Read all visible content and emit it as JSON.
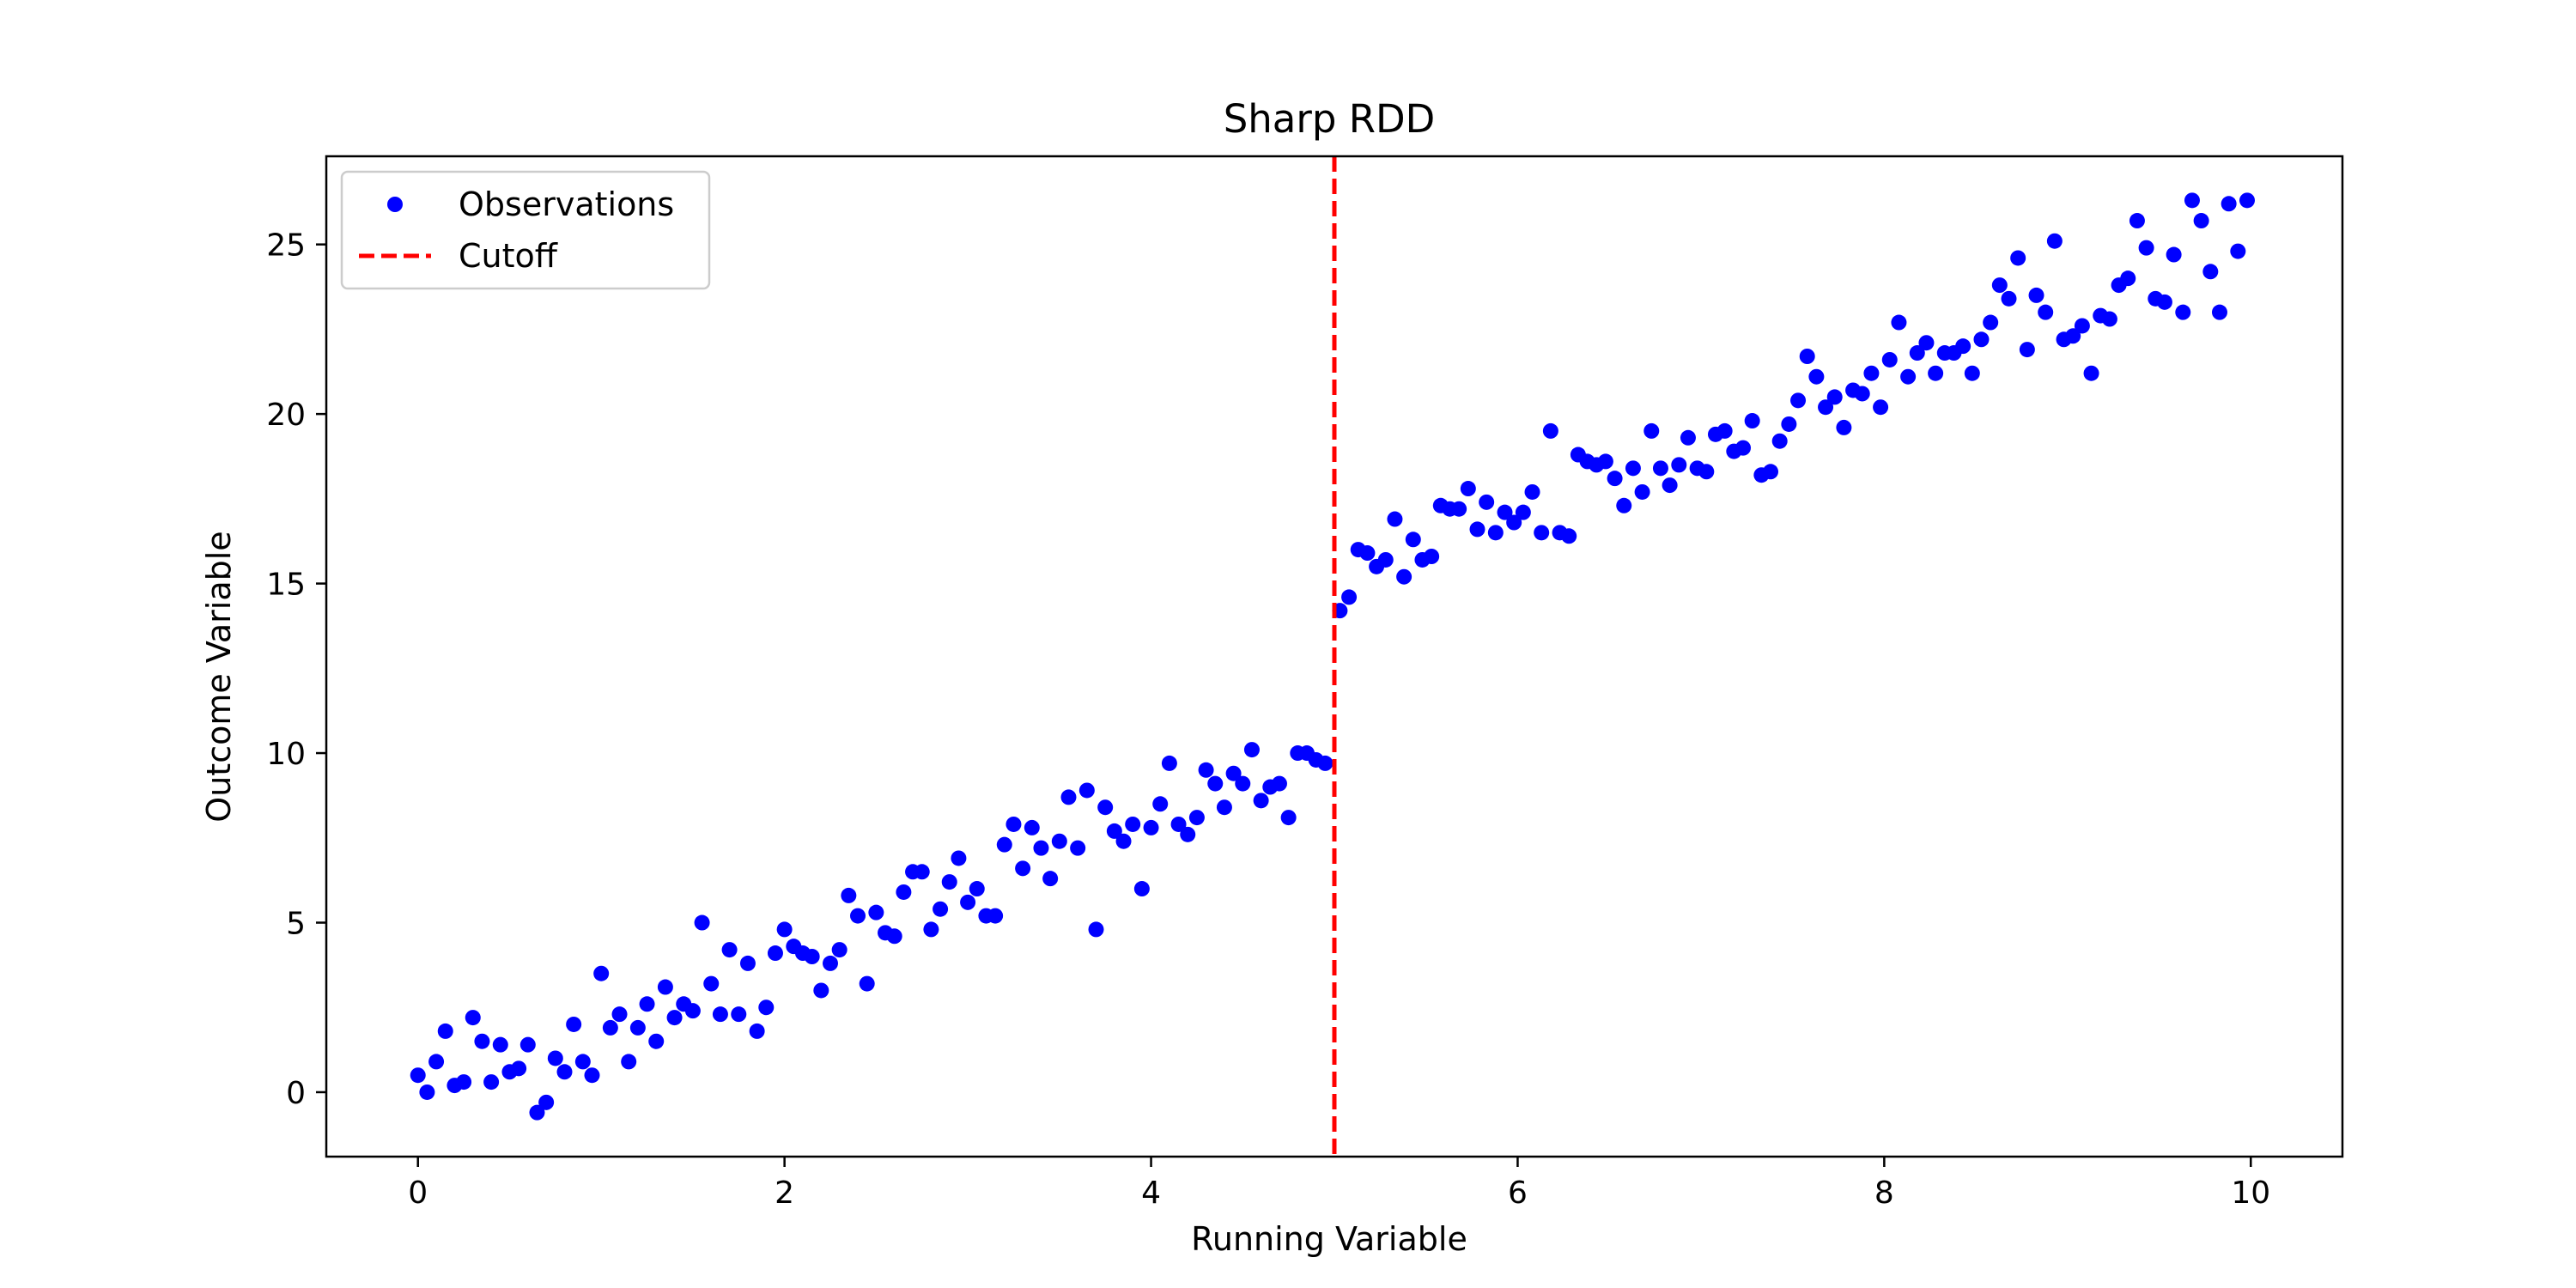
{
  "chart_data": {
    "type": "scatter",
    "title": "Sharp RDD",
    "xlabel": "Running Variable",
    "ylabel": "Outcome Variable",
    "xlim": [
      -0.5,
      10.5
    ],
    "ylim": [
      -1.9,
      27.6
    ],
    "x_ticks": [
      0,
      2,
      4,
      6,
      8,
      10
    ],
    "y_ticks": [
      0,
      5,
      10,
      15,
      20,
      25
    ],
    "x_tick_labels": [
      "0",
      "2",
      "4",
      "6",
      "8",
      "10"
    ],
    "y_tick_labels": [
      "0",
      "5",
      "10",
      "15",
      "20",
      "25"
    ],
    "grid": false,
    "legend_position": "top-left",
    "series": [
      {
        "name": "Observations",
        "kind": "scatter",
        "color": "#0000ff",
        "x": [
          0.0,
          0.05,
          0.1,
          0.15,
          0.2,
          0.25,
          0.3,
          0.35,
          0.4,
          0.45,
          0.5,
          0.55,
          0.6,
          0.65,
          0.7,
          0.75,
          0.8,
          0.85,
          0.9,
          0.95,
          1.0,
          1.05,
          1.1,
          1.15,
          1.2,
          1.25,
          1.3,
          1.35,
          1.4,
          1.45,
          1.5,
          1.55,
          1.6,
          1.65,
          1.7,
          1.75,
          1.8,
          1.85,
          1.9,
          1.95,
          2.0,
          2.05,
          2.1,
          2.15,
          2.2,
          2.25,
          2.3,
          2.35,
          2.4,
          2.45,
          2.5,
          2.55,
          2.6,
          2.65,
          2.7,
          2.75,
          2.8,
          2.85,
          2.9,
          2.95,
          3.0,
          3.05,
          3.1,
          3.15,
          3.2,
          3.25,
          3.3,
          3.35,
          3.4,
          3.45,
          3.5,
          3.55,
          3.6,
          3.65,
          3.7,
          3.75,
          3.8,
          3.85,
          3.9,
          3.95,
          4.0,
          4.05,
          4.1,
          4.15,
          4.2,
          4.25,
          4.3,
          4.35,
          4.4,
          4.45,
          4.5,
          4.55,
          4.6,
          4.65,
          4.7,
          4.75,
          4.8,
          4.85,
          4.9,
          4.95,
          5.03,
          5.08,
          5.13,
          5.18,
          5.23,
          5.28,
          5.33,
          5.38,
          5.43,
          5.48,
          5.53,
          5.58,
          5.63,
          5.68,
          5.73,
          5.78,
          5.83,
          5.88,
          5.93,
          5.98,
          6.03,
          6.08,
          6.13,
          6.18,
          6.23,
          6.28,
          6.33,
          6.38,
          6.43,
          6.48,
          6.53,
          6.58,
          6.63,
          6.68,
          6.73,
          6.78,
          6.83,
          6.88,
          6.93,
          6.98,
          7.03,
          7.08,
          7.13,
          7.18,
          7.23,
          7.28,
          7.33,
          7.38,
          7.43,
          7.48,
          7.53,
          7.58,
          7.63,
          7.68,
          7.73,
          7.78,
          7.83,
          7.88,
          7.93,
          7.98,
          8.03,
          8.08,
          8.13,
          8.18,
          8.23,
          8.28,
          8.33,
          8.38,
          8.43,
          8.48,
          8.53,
          8.58,
          8.63,
          8.68,
          8.73,
          8.78,
          8.83,
          8.88,
          8.93,
          8.98,
          9.03,
          9.08,
          9.13,
          9.18,
          9.23,
          9.28,
          9.33,
          9.38,
          9.43,
          9.48,
          9.53,
          9.58,
          9.63,
          9.68,
          9.73,
          9.78,
          9.83,
          9.88,
          9.93,
          9.98
        ],
        "y": [
          0.5,
          0.0,
          0.9,
          1.8,
          0.2,
          0.3,
          2.2,
          1.5,
          0.3,
          1.4,
          0.6,
          0.7,
          1.4,
          -0.6,
          -0.3,
          1.0,
          0.6,
          2.0,
          0.9,
          0.5,
          3.5,
          1.9,
          2.3,
          0.9,
          1.9,
          2.6,
          1.5,
          3.1,
          2.2,
          2.6,
          2.4,
          5.0,
          3.2,
          2.3,
          4.2,
          2.3,
          3.8,
          1.8,
          2.5,
          4.1,
          4.8,
          4.3,
          4.1,
          4.0,
          3.0,
          3.8,
          4.2,
          5.8,
          5.2,
          3.2,
          5.3,
          4.7,
          4.6,
          5.9,
          6.5,
          6.5,
          4.8,
          5.4,
          6.2,
          6.9,
          5.6,
          6.0,
          5.2,
          5.2,
          7.3,
          7.9,
          6.6,
          7.8,
          7.2,
          6.3,
          7.4,
          8.7,
          7.2,
          8.9,
          4.8,
          8.4,
          7.7,
          7.4,
          7.9,
          6.0,
          7.8,
          8.5,
          9.7,
          7.9,
          7.6,
          8.1,
          9.5,
          9.1,
          8.4,
          9.4,
          9.1,
          10.1,
          8.6,
          9.0,
          9.1,
          8.1,
          10.0,
          10.0,
          9.8,
          9.7,
          14.2,
          14.6,
          16.0,
          15.9,
          15.5,
          15.7,
          16.9,
          15.2,
          16.3,
          15.7,
          15.8,
          17.3,
          17.2,
          17.2,
          17.8,
          16.6,
          17.4,
          16.5,
          17.1,
          16.8,
          17.1,
          17.7,
          16.5,
          19.5,
          16.5,
          16.4,
          18.8,
          18.6,
          18.5,
          18.6,
          18.1,
          17.3,
          18.4,
          17.7,
          19.5,
          18.4,
          17.9,
          18.5,
          19.3,
          18.4,
          18.3,
          19.4,
          19.5,
          18.9,
          19.0,
          19.8,
          18.2,
          18.3,
          19.2,
          19.7,
          20.4,
          21.7,
          21.1,
          20.2,
          20.5,
          19.6,
          20.7,
          20.6,
          21.2,
          20.2,
          21.6,
          22.7,
          21.1,
          21.8,
          22.1,
          21.2,
          21.8,
          21.8,
          22.0,
          21.2,
          22.2,
          22.7,
          23.8,
          23.4,
          24.6,
          21.9,
          23.5,
          23.0,
          25.1,
          22.2,
          22.3,
          22.6,
          21.2,
          22.9,
          22.8,
          23.8,
          24.0,
          25.7,
          24.9,
          23.4,
          23.3,
          24.7,
          23.0,
          26.3,
          25.7,
          24.2,
          23.0,
          26.2,
          24.8,
          26.3
        ]
      },
      {
        "name": "Cutoff",
        "kind": "vline",
        "color": "#ff0000",
        "x": 5
      }
    ]
  }
}
